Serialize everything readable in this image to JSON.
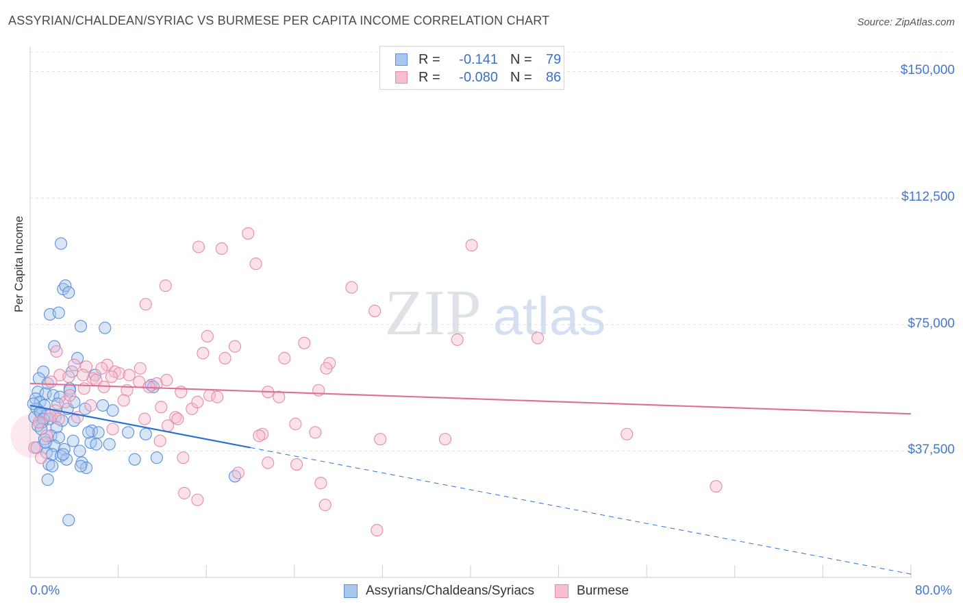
{
  "title": "ASSYRIAN/CHALDEAN/SYRIAC VS BURMESE PER CAPITA INCOME CORRELATION CHART",
  "source": "Source: ZipAtlas.com",
  "watermark": {
    "zip": "ZIP",
    "atlas": "atlas"
  },
  "colors": {
    "blue": "#5b8fd9",
    "blue_fill": "#a9c6ee",
    "blue_line": "#2a6fd6",
    "pink": "#e68aa8",
    "pink_fill": "#f6bfd1",
    "pink_line": "#e0709a",
    "tick_text": "#4477cc",
    "grid": "#dddddd"
  },
  "legend": {
    "rows": [
      {
        "r_label": "R =",
        "r_value": "-0.141",
        "n_label": "N =",
        "n_value": "79"
      },
      {
        "r_label": "R =",
        "r_value": "-0.080",
        "n_label": "N =",
        "n_value": "86"
      }
    ]
  },
  "bottom_legend": [
    "Assyrians/Chaldeans/Syriacs",
    "Burmese"
  ],
  "chart_data": {
    "type": "scatter",
    "title": "ASSYRIAN/CHALDEAN/SYRIAC VS BURMESE PER CAPITA INCOME CORRELATION CHART",
    "xlabel": "",
    "ylabel": "Per Capita Income",
    "xlim": [
      0,
      80
    ],
    "ylim": [
      0,
      157000
    ],
    "x_tick_labels": [
      "0.0%",
      "80.0%"
    ],
    "y_ticks": [
      37500,
      75000,
      112500,
      150000
    ],
    "y_tick_labels": [
      "$37,500",
      "$75,000",
      "$112,500",
      "$150,000"
    ],
    "series": [
      {
        "name": "Assyrians/Chaldeans/Syriacs",
        "r": -0.141,
        "n": 79,
        "trend": {
          "x0": 0,
          "y0": 51000,
          "x1": 20,
          "y1": 38500,
          "x_dash_end": 80,
          "y_dash_end": 1000
        },
        "points": [
          [
            2.8,
            99
          ],
          [
            3.0,
            85.5
          ],
          [
            3.2,
            86.5
          ],
          [
            3.5,
            84.5
          ],
          [
            1.8,
            78
          ],
          [
            2.6,
            78.5
          ],
          [
            4.6,
            74.5
          ],
          [
            6.8,
            74
          ],
          [
            2.2,
            68.5
          ],
          [
            4.3,
            65
          ],
          [
            1.2,
            61
          ],
          [
            3.8,
            61
          ],
          [
            5.9,
            60
          ],
          [
            0.8,
            59
          ],
          [
            1.6,
            57.5
          ],
          [
            11.0,
            57
          ],
          [
            11.2,
            56.5
          ],
          [
            3.6,
            56
          ],
          [
            0.7,
            55
          ],
          [
            1.4,
            54.5
          ],
          [
            2.1,
            54
          ],
          [
            2.7,
            53.5
          ],
          [
            0.5,
            53
          ],
          [
            0.9,
            52
          ],
          [
            1.3,
            51
          ],
          [
            0.6,
            50
          ],
          [
            3.4,
            50
          ],
          [
            5.0,
            50
          ],
          [
            7.5,
            49.5
          ],
          [
            1.0,
            48.5
          ],
          [
            1.5,
            48
          ],
          [
            0.4,
            47.5
          ],
          [
            2.3,
            47.5
          ],
          [
            1.8,
            47
          ],
          [
            2.9,
            46.5
          ],
          [
            4.0,
            46.5
          ],
          [
            1.1,
            46
          ],
          [
            0.7,
            45
          ],
          [
            2.4,
            44.5
          ],
          [
            5.6,
            43.5
          ],
          [
            6.2,
            43
          ],
          [
            8.9,
            43
          ],
          [
            10.5,
            42.5
          ],
          [
            1.9,
            42
          ],
          [
            2.6,
            41.5
          ],
          [
            1.3,
            41
          ],
          [
            3.9,
            40.5
          ],
          [
            5.5,
            40
          ],
          [
            7.2,
            39.5
          ],
          [
            2.2,
            39
          ],
          [
            0.6,
            38.5
          ],
          [
            3.1,
            38
          ],
          [
            4.5,
            37.5
          ],
          [
            1.5,
            37
          ],
          [
            2.0,
            36.5
          ],
          [
            2.8,
            36
          ],
          [
            11.5,
            35.5
          ],
          [
            9.5,
            35
          ],
          [
            3.3,
            35
          ],
          [
            4.7,
            34
          ],
          [
            1.7,
            33.5
          ],
          [
            5.1,
            32.5
          ],
          [
            18.6,
            30
          ],
          [
            1.6,
            29
          ],
          [
            3.5,
            17
          ],
          [
            0.3,
            51.5
          ],
          [
            0.9,
            49
          ],
          [
            1.2,
            47
          ],
          [
            1.0,
            44
          ],
          [
            1.4,
            40
          ],
          [
            4.6,
            33
          ],
          [
            2.0,
            33
          ],
          [
            3.0,
            36.5
          ],
          [
            5.3,
            43
          ],
          [
            6.0,
            39.5
          ],
          [
            4.0,
            52
          ],
          [
            6.6,
            51
          ],
          [
            3.6,
            55.5
          ],
          [
            2.5,
            51.5
          ]
        ]
      },
      {
        "name": "Burmese",
        "r": -0.08,
        "n": 86,
        "trend": {
          "x0": 0,
          "y0": 57500,
          "x1": 80,
          "y1": 48500
        },
        "points": [
          [
            19.8,
            102
          ],
          [
            15.3,
            98
          ],
          [
            17.4,
            97.5
          ],
          [
            40.1,
            98.5
          ],
          [
            20.5,
            93
          ],
          [
            12.3,
            86.5
          ],
          [
            29.2,
            86
          ],
          [
            10.5,
            81
          ],
          [
            31.3,
            79
          ],
          [
            16.1,
            71.5
          ],
          [
            24.9,
            69.5
          ],
          [
            46.1,
            71
          ],
          [
            38.8,
            70.5
          ],
          [
            18.6,
            68.5
          ],
          [
            15.7,
            66.5
          ],
          [
            17.7,
            65
          ],
          [
            23.1,
            65
          ],
          [
            27.2,
            63.5
          ],
          [
            26.9,
            62
          ],
          [
            7.0,
            63
          ],
          [
            4.0,
            63
          ],
          [
            5.1,
            62.5
          ],
          [
            6.5,
            62
          ],
          [
            7.7,
            61
          ],
          [
            8.1,
            60.5
          ],
          [
            9.0,
            60
          ],
          [
            2.7,
            60
          ],
          [
            3.5,
            59.5
          ],
          [
            5.7,
            59
          ],
          [
            6.0,
            58.5
          ],
          [
            9.9,
            58
          ],
          [
            11.5,
            57.5
          ],
          [
            10.8,
            56.5
          ],
          [
            4.9,
            56
          ],
          [
            8.8,
            55.5
          ],
          [
            13.7,
            55
          ],
          [
            26.2,
            55.5
          ],
          [
            21.6,
            55
          ],
          [
            22.6,
            53.5
          ],
          [
            16.3,
            54
          ],
          [
            17.0,
            53.5
          ],
          [
            5.5,
            51
          ],
          [
            11.9,
            50.5
          ],
          [
            14.7,
            50
          ],
          [
            2.3,
            49.5
          ],
          [
            1.8,
            48
          ],
          [
            4.3,
            47.5
          ],
          [
            13.2,
            47.5
          ],
          [
            13.4,
            47
          ],
          [
            10.4,
            47
          ],
          [
            15.2,
            52
          ],
          [
            24.1,
            45.5
          ],
          [
            12.5,
            45
          ],
          [
            7.5,
            44
          ],
          [
            25.9,
            43
          ],
          [
            21.1,
            42.5
          ],
          [
            20.8,
            42
          ],
          [
            31.8,
            41
          ],
          [
            37.7,
            41
          ],
          [
            54.2,
            42.5
          ],
          [
            11.8,
            40.5
          ],
          [
            13.9,
            35.5
          ],
          [
            21.6,
            34
          ],
          [
            24.2,
            33.5
          ],
          [
            1.0,
            35.5
          ],
          [
            0.4,
            38.5
          ],
          [
            18.9,
            31
          ],
          [
            26.4,
            28
          ],
          [
            62.3,
            27
          ],
          [
            14.0,
            25
          ],
          [
            15.2,
            23
          ],
          [
            26.8,
            21.5
          ],
          [
            31.5,
            14
          ],
          [
            1.5,
            42
          ],
          [
            2.6,
            47
          ],
          [
            3.2,
            52
          ],
          [
            0.8,
            46
          ],
          [
            3.6,
            54
          ],
          [
            4.8,
            60
          ],
          [
            1.9,
            58
          ],
          [
            8.5,
            52.5
          ],
          [
            6.7,
            56.5
          ],
          [
            12.4,
            58.5
          ],
          [
            10.0,
            62
          ],
          [
            7.4,
            59.5
          ],
          [
            2.4,
            67
          ]
        ]
      }
    ]
  }
}
